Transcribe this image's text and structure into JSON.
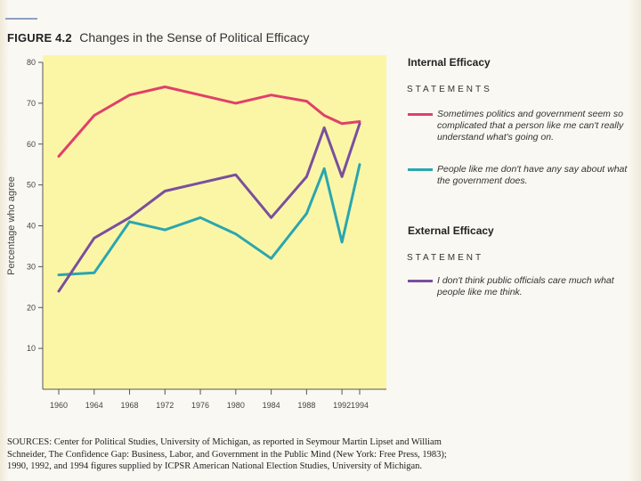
{
  "figure": {
    "number": "FIGURE 4.2",
    "title": "Changes in the Sense of Political Efficacy"
  },
  "sidebar": {
    "internal_heading": "Internal Efficacy",
    "internal_statements_label": "STATEMENTS",
    "legend_red": "Sometimes politics and government seem so complicated that a person like me can't really understand what's going on.",
    "legend_teal": "People like me don't have any say about what the government does.",
    "external_heading": "External Efficacy",
    "external_statement_label": "STATEMENT",
    "legend_purple": "I don't think public officials care much what people like me think."
  },
  "sources": "SOURCES: Center for Political Studies, University of Michigan, as reported in Seymour Martin Lipset and William Schneider, The Confidence Gap: Business, Labor, and Government in the Public Mind (New York: Free Press, 1983); 1990, 1992, and 1994 figures supplied by ICPSR American National Election Studies, University of Michigan.",
  "colors": {
    "plot_bg": "#fbf6a6",
    "red": "#e0406a",
    "teal": "#2aa6b0",
    "purple": "#7a4f9e"
  },
  "chart_data": {
    "type": "line",
    "ylabel": "Percentage who agree",
    "ylim": [
      0,
      80
    ],
    "yticks": [
      10,
      20,
      30,
      40,
      50,
      60,
      70,
      80
    ],
    "x": [
      1960,
      1964,
      1968,
      1972,
      1976,
      1980,
      1984,
      1988,
      1990,
      1992,
      1994
    ],
    "xtick_labels": [
      "1960",
      "1964",
      "1968",
      "1972",
      "1976",
      "1980",
      "1984",
      "1988",
      "1992",
      "1994"
    ],
    "xtick_values": [
      1960,
      1964,
      1968,
      1972,
      1976,
      1980,
      1984,
      1988,
      1992,
      1994
    ],
    "grid": false,
    "series": [
      {
        "color_key": "red",
        "values": [
          57,
          67,
          72,
          74,
          72,
          70,
          72,
          70.5,
          67,
          65,
          65.5
        ]
      },
      {
        "color_key": "teal",
        "values": [
          28,
          28.5,
          41,
          39,
          42,
          38,
          32,
          43,
          54,
          36,
          55
        ]
      },
      {
        "color_key": "purple",
        "values": [
          24,
          37,
          42,
          48.5,
          50.5,
          52.5,
          42,
          52,
          64,
          52,
          65
        ]
      }
    ]
  }
}
